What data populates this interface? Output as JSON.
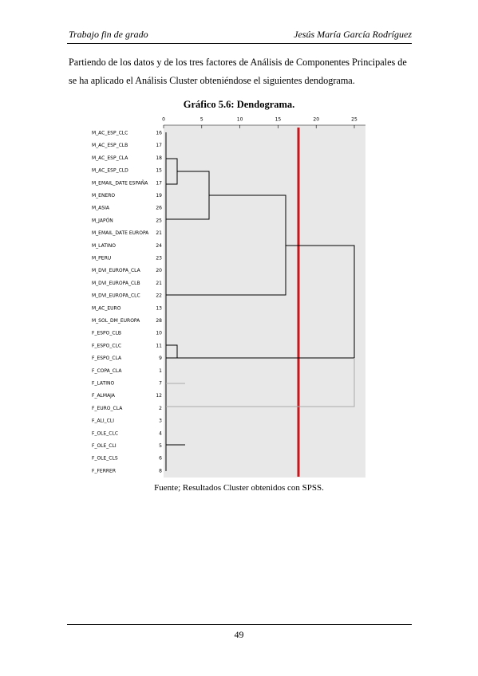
{
  "header": {
    "left": "Trabajo fin de grado",
    "right": "Jesús María García Rodríguez"
  },
  "paragraph": [
    "Partiendo de los datos y de los tres factores de Análisis de Componentes Principales de",
    "se ha aplicado el Análisis Cluster obteniéndose el siguientes dendograma."
  ],
  "figure": {
    "title": "Gráfico 5.6: Dendograma.",
    "axis_ticks": [
      0,
      5,
      10,
      15,
      20,
      25
    ],
    "rows": [
      {
        "label": "M_AC_ESP_CLC",
        "number": "16"
      },
      {
        "label": "M_AC_ESP_CLB",
        "number": "17"
      },
      {
        "label": "M_AC_ESP_CLA",
        "number": "18"
      },
      {
        "label": "M_AC_ESP_CLD",
        "number": "15"
      },
      {
        "label": "M_EMAIL_DATE ESPAÑA",
        "number": "17"
      },
      {
        "label": "M_ENERO",
        "number": "19"
      },
      {
        "label": "M_ASIA",
        "number": "26"
      },
      {
        "label": "M_JAPÓN",
        "number": "25"
      },
      {
        "label": "M_EMAIL_DATE EUROPA",
        "number": "21"
      },
      {
        "label": "M_LATINO",
        "number": "24"
      },
      {
        "label": "M_PERU",
        "number": "23"
      },
      {
        "label": "M_DVI_EUROPA_CLA",
        "number": "20"
      },
      {
        "label": "M_DVI_EUROPA_CLB",
        "number": "21"
      },
      {
        "label": "M_DVI_EUROPA_CLC",
        "number": "22"
      },
      {
        "label": "M_AC_EURO",
        "number": "13"
      },
      {
        "label": "M_SOL_DM_EUROPA",
        "number": "28"
      },
      {
        "label": "F_ESPO_CLB",
        "number": "10"
      },
      {
        "label": "F_ESPO_CLC",
        "number": "11"
      },
      {
        "label": "F_ESPO_CLA",
        "number": "9"
      },
      {
        "label": "F_COPA_CLA",
        "number": "1"
      },
      {
        "label": "F_LATINO",
        "number": "7"
      },
      {
        "label": "F_ALMAJA",
        "number": "12"
      },
      {
        "label": "F_EURO_CLA",
        "number": "2"
      },
      {
        "label": "F_ALI_CLI",
        "number": "3"
      },
      {
        "label": "F_OLE_CLC",
        "number": "4"
      },
      {
        "label": "F_OLE_CLI",
        "number": "5"
      },
      {
        "label": "F_OLE_CLS",
        "number": "6"
      },
      {
        "label": "F_FERRER",
        "number": "8"
      }
    ],
    "caption": "Fuente; Resultados Cluster obtenidos con SPSS."
  },
  "footer": {
    "page": "49"
  }
}
